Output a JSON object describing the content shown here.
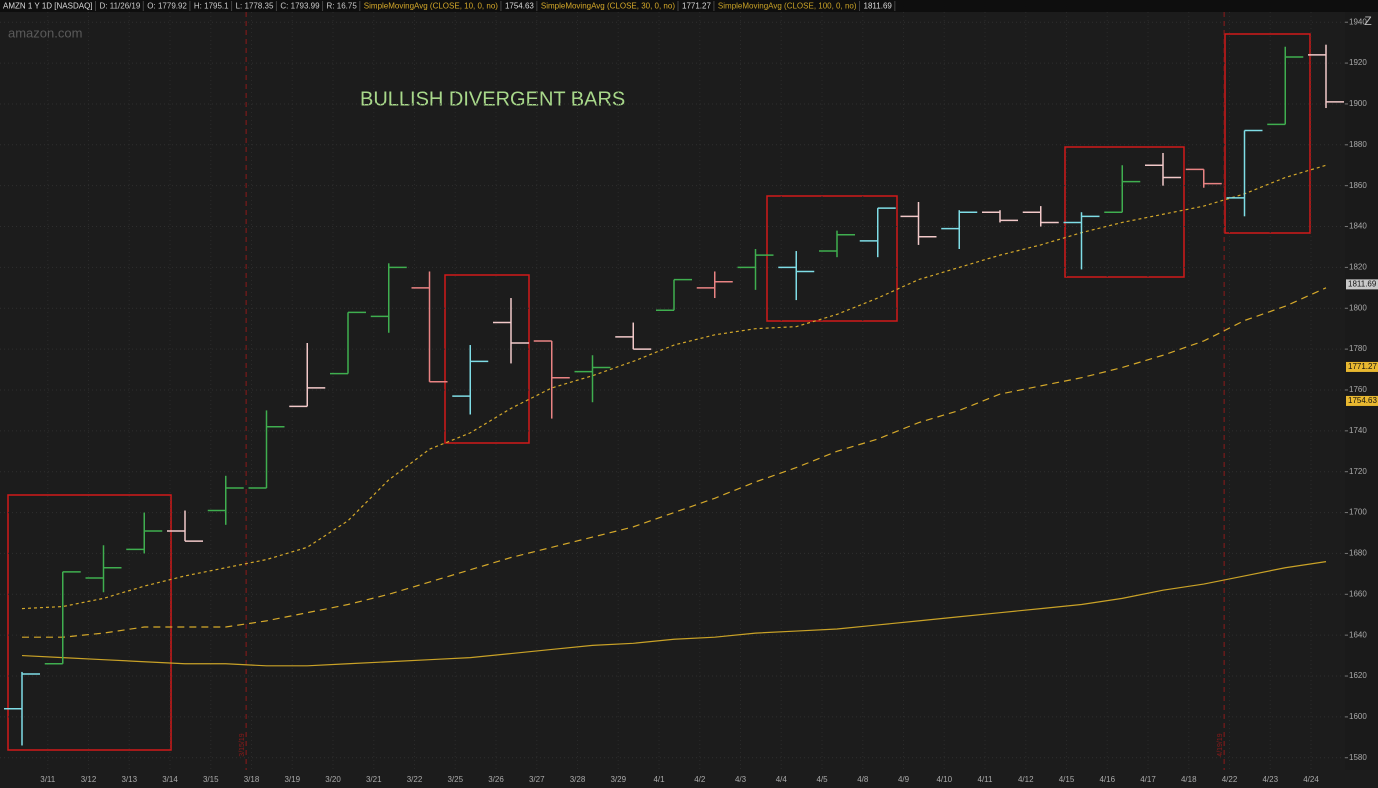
{
  "header": {
    "symbol": "AMZN 1 Y 1D [NASDAQ]",
    "fields": [
      "D: 11/26/19",
      "O: 1779.92",
      "H: 1795.1",
      "L: 1778.35",
      "C: 1793.99",
      "R: 16.75"
    ]
  },
  "watermark": "amazon.com",
  "chart_data": {
    "type": "ohlc",
    "annotation": "BULLISH DIVERGENT BARS",
    "categories": [
      null,
      "3/11",
      "3/12",
      "3/13",
      "3/14",
      "3/15",
      "3/18",
      "3/19",
      "3/20",
      "3/21",
      "3/22",
      "3/25",
      "3/26",
      "3/27",
      "3/28",
      "3/29",
      "4/1",
      "4/2",
      "4/3",
      "4/4",
      "4/5",
      "4/8",
      "4/9",
      "4/10",
      "4/11",
      "4/12",
      "4/15",
      "4/16",
      "4/17",
      "4/18",
      "4/22",
      "4/23",
      "4/24"
    ],
    "open": [
      1604,
      1626,
      1668,
      1682,
      1691,
      1701,
      1712,
      1752,
      1768,
      1796,
      1810,
      1757,
      1793,
      1784,
      1769,
      1786,
      1799,
      1810,
      1820,
      1820,
      1828,
      1833,
      1845,
      1839,
      1847,
      1847,
      1842,
      1847,
      1870,
      1868,
      1854,
      1890,
      1924
    ],
    "high": [
      1622,
      1671,
      1684,
      1700,
      1701,
      1718,
      1750,
      1783,
      1798,
      1822,
      1818,
      1782,
      1805,
      1784,
      1777,
      1793,
      1814,
      1818,
      1829,
      1828,
      1838,
      1849,
      1852,
      1848,
      1848,
      1850,
      1847,
      1870,
      1876,
      1868,
      1887,
      1928,
      1929
    ],
    "low": [
      1586,
      1626,
      1661,
      1680,
      1686,
      1694,
      1712,
      1752,
      1768,
      1788,
      1764,
      1748,
      1773,
      1746,
      1754,
      1780,
      1799,
      1805,
      1809,
      1804,
      1825,
      1825,
      1831,
      1829,
      1842,
      1840,
      1819,
      1847,
      1860,
      1859,
      1845,
      1890,
      1898
    ],
    "close": [
      1621,
      1671,
      1673,
      1691,
      1686,
      1712,
      1742,
      1761,
      1798,
      1820,
      1764,
      1774,
      1783,
      1766,
      1771,
      1780,
      1814,
      1813,
      1826,
      1818,
      1836,
      1849,
      1835,
      1847,
      1843,
      1842,
      1845,
      1862,
      1864,
      1861,
      1887,
      1923,
      1901
    ],
    "colors": [
      "#7fdde6",
      "#3fae4f",
      "#3fae4f",
      "#3fae4f",
      "#f2c9c9",
      "#3fae4f",
      "#3fae4f",
      "#f2c9c9",
      "#3fae4f",
      "#3fae4f",
      "#e98383",
      "#7fdde6",
      "#f2c9c9",
      "#e98383",
      "#3fae4f",
      "#f2c9c9",
      "#3fae4f",
      "#e98383",
      "#3fae4f",
      "#7fdde6",
      "#3fae4f",
      "#7fdde6",
      "#f2c9c9",
      "#7fdde6",
      "#f2c9c9",
      "#f2c9c9",
      "#7fdde6",
      "#3fae4f",
      "#f2c9c9",
      "#e98383",
      "#7fdde6",
      "#3fae4f",
      "#f2c9c9"
    ],
    "studies": [
      {
        "name": "SimpleMovingAvg (CLOSE, 10, 0, no)",
        "value": 1754.63,
        "color": "#d4a82a",
        "style": "dotted",
        "marker_color": "#e8b830",
        "values": [
          1653,
          1654,
          1658,
          1664,
          1669,
          1673,
          1677,
          1683,
          1696,
          1716,
          1731,
          1739,
          1751,
          1761,
          1767,
          1774,
          1782,
          1787,
          1790,
          1791,
          1797,
          1805,
          1814,
          1820,
          1826,
          1831,
          1837,
          1842,
          1846,
          1850,
          1856,
          1864,
          1870
        ]
      },
      {
        "name": "SimpleMovingAvg (CLOSE, 30, 0, no)",
        "value": 1771.27,
        "color": "#d4a82a",
        "style": "dashed",
        "marker_color": "#e8b830",
        "values": [
          1639,
          1639,
          1641,
          1644,
          1644,
          1644,
          1647,
          1651,
          1655,
          1660,
          1666,
          1672,
          1678,
          1683,
          1688,
          1693,
          1700,
          1707,
          1715,
          1722,
          1730,
          1736,
          1744,
          1750,
          1758,
          1762,
          1766,
          1771,
          1777,
          1784,
          1794,
          1801,
          1810
        ]
      },
      {
        "name": "SimpleMovingAvg (CLOSE, 100, 0, no)",
        "value": 1811.69,
        "color": "#c9a227",
        "style": "solid",
        "marker_color": "#c8c8c8",
        "values": [
          1630,
          1629,
          1628,
          1627,
          1626,
          1626,
          1625,
          1625,
          1626,
          1627,
          1628,
          1629,
          1631,
          1633,
          1635,
          1636,
          1638,
          1639,
          1641,
          1642,
          1643,
          1645,
          1647,
          1649,
          1651,
          1653,
          1655,
          1658,
          1662,
          1665,
          1669,
          1673,
          1676
        ]
      }
    ],
    "events": [
      {
        "label": "3/15/19",
        "after": 5
      },
      {
        "label": "4/19/19",
        "after": 29
      }
    ],
    "ylim": [
      1574,
      1945
    ],
    "yticks": [
      1580,
      1600,
      1620,
      1640,
      1660,
      1680,
      1700,
      1720,
      1740,
      1760,
      1780,
      1800,
      1820,
      1840,
      1860,
      1880,
      1900,
      1920,
      1940
    ],
    "grid": true
  }
}
